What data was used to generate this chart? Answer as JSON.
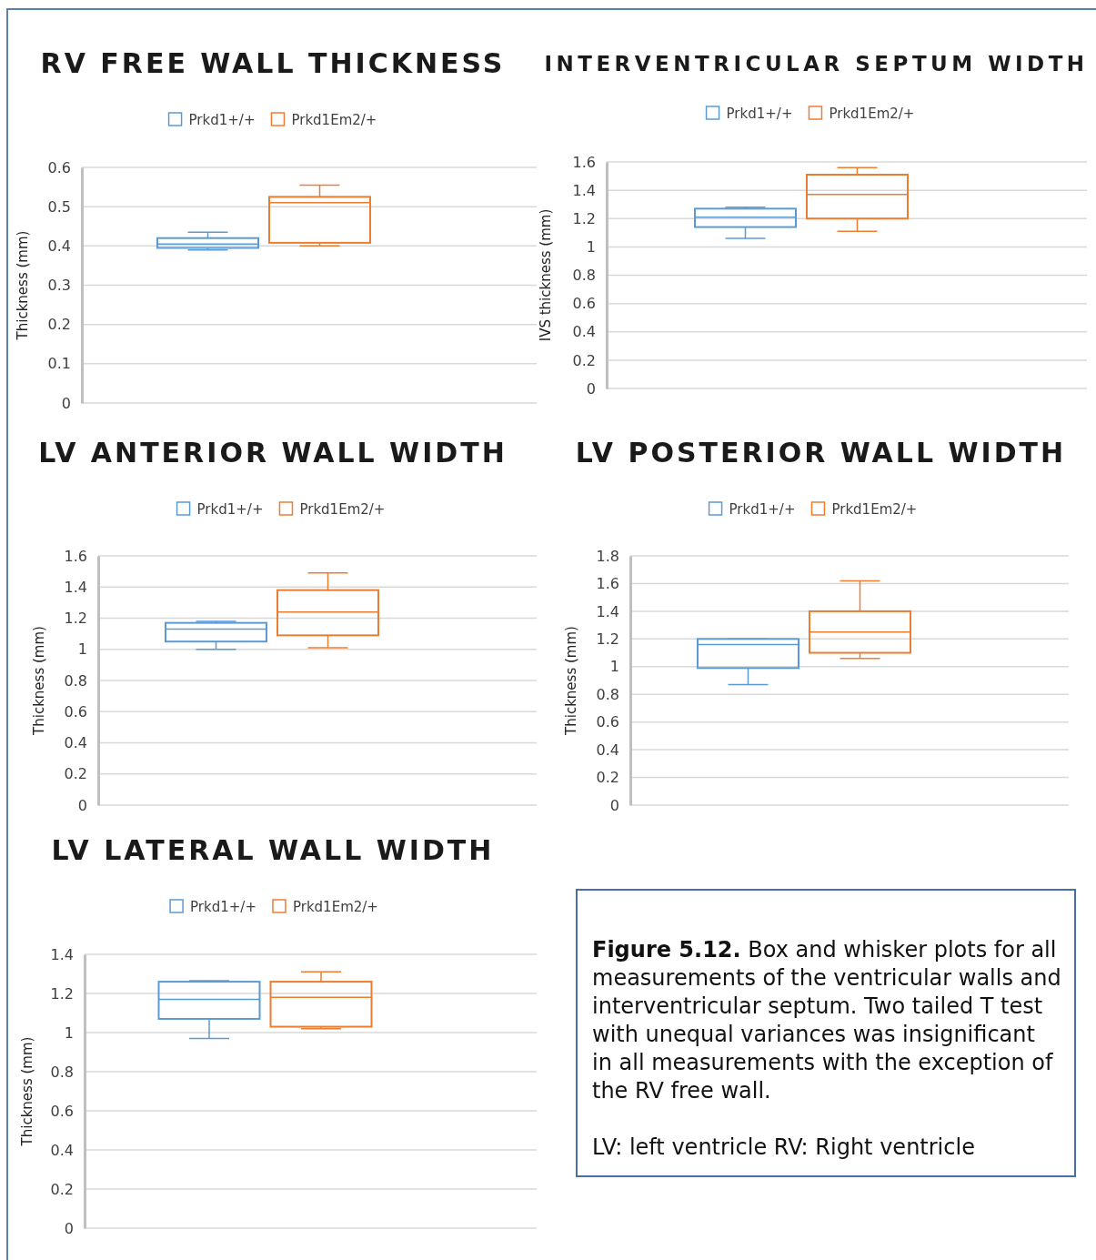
{
  "chart_data": [
    {
      "type": "box",
      "title": "RV FREE WALL THICKNESS",
      "ylabel": "Thickness (mm)",
      "categories": [
        null
      ],
      "ylim": [
        0,
        0.6
      ],
      "yticks": [
        0,
        0.1,
        0.2,
        0.3,
        0.4,
        0.5,
        0.6
      ],
      "grid": "y",
      "legend": "top",
      "series": [
        {
          "name": "Prkd1+/+",
          "color": "#5b9bd5",
          "boxes": [
            {
              "low": 0.39,
              "q1": 0.395,
              "median": 0.405,
              "q3": 0.42,
              "high": 0.435
            }
          ]
        },
        {
          "name": "Prkd1Em2/+",
          "color": "#ed7d31",
          "boxes": [
            {
              "low": 0.4,
              "q1": 0.408,
              "median": 0.51,
              "q3": 0.525,
              "high": 0.555
            }
          ]
        }
      ]
    },
    {
      "type": "box",
      "title": "INTERVENTRICULAR SEPTUM WIDTH",
      "ylabel": "IVS thickness (mm)",
      "categories": [
        null
      ],
      "ylim": [
        0,
        1.6
      ],
      "yticks": [
        0,
        0.2,
        0.4,
        0.6,
        0.8,
        1,
        1.2,
        1.4,
        1.6
      ],
      "grid": "y",
      "legend": "top",
      "series": [
        {
          "name": "Prkd1+/+",
          "color": "#5b9bd5",
          "boxes": [
            {
              "low": 1.06,
              "q1": 1.14,
              "median": 1.21,
              "q3": 1.27,
              "high": 1.28
            }
          ]
        },
        {
          "name": "Prkd1Em2/+",
          "color": "#ed7d31",
          "boxes": [
            {
              "low": 1.11,
              "q1": 1.2,
              "median": 1.37,
              "q3": 1.51,
              "high": 1.56
            }
          ]
        }
      ]
    },
    {
      "type": "box",
      "title": "LV ANTERIOR WALL WIDTH",
      "ylabel": "Thickness (mm)",
      "categories": [
        null
      ],
      "ylim": [
        0,
        1.6
      ],
      "yticks": [
        0,
        0.2,
        0.4,
        0.6,
        0.8,
        1,
        1.2,
        1.4,
        1.6
      ],
      "grid": "y",
      "legend": "top",
      "series": [
        {
          "name": "Prkd1+/+",
          "color": "#5b9bd5",
          "boxes": [
            {
              "low": 1.0,
              "q1": 1.05,
              "median": 1.13,
              "q3": 1.17,
              "high": 1.18
            }
          ]
        },
        {
          "name": "Prkd1Em2/+",
          "color": "#ed7d31",
          "boxes": [
            {
              "low": 1.01,
              "q1": 1.09,
              "median": 1.24,
              "q3": 1.38,
              "high": 1.49
            }
          ]
        }
      ]
    },
    {
      "type": "box",
      "title": "LV POSTERIOR WALL WIDTH",
      "ylabel": "Thickness (mm)",
      "categories": [
        null
      ],
      "ylim": [
        0,
        1.8
      ],
      "yticks": [
        0,
        0.2,
        0.4,
        0.6,
        0.8,
        1,
        1.2,
        1.4,
        1.6,
        1.8
      ],
      "grid": "y",
      "legend": "top",
      "series": [
        {
          "name": "Prkd1+/+",
          "color": "#5b9bd5",
          "boxes": [
            {
              "low": 0.87,
              "q1": 0.99,
              "median": 1.16,
              "q3": 1.2,
              "high": 1.2
            }
          ]
        },
        {
          "name": "Prkd1Em2/+",
          "color": "#ed7d31",
          "boxes": [
            {
              "low": 1.06,
              "q1": 1.1,
              "median": 1.25,
              "q3": 1.4,
              "high": 1.62
            }
          ]
        }
      ]
    },
    {
      "type": "box",
      "title": "LV LATERAL WALL WIDTH",
      "ylabel": "Thickness (mm)",
      "categories": [
        null
      ],
      "ylim": [
        0,
        1.4
      ],
      "yticks": [
        0,
        0.2,
        0.4,
        0.6,
        0.8,
        1,
        1.2,
        1.4
      ],
      "grid": "y",
      "legend": "top",
      "series": [
        {
          "name": "Prkd1+/+",
          "color": "#5b9bd5",
          "boxes": [
            {
              "low": 0.97,
              "q1": 1.07,
              "median": 1.17,
              "q3": 1.26,
              "high": 1.265
            }
          ]
        },
        {
          "name": "Prkd1Em2/+",
          "color": "#ed7d31",
          "boxes": [
            {
              "low": 1.02,
              "q1": 1.03,
              "median": 1.18,
              "q3": 1.26,
              "high": 1.31
            }
          ]
        }
      ]
    },
    {
      "type": "other",
      "title": "Figure 5.12.",
      "annotations": [
        "Box and whisker plots for all measurements of the ventricular walls and interventricular septum. Two tailed T test with unequal variances was insignificant in all measurements with the exception of the RV free wall.",
        "LV: left ventricle RV: Right ventricle"
      ]
    }
  ]
}
